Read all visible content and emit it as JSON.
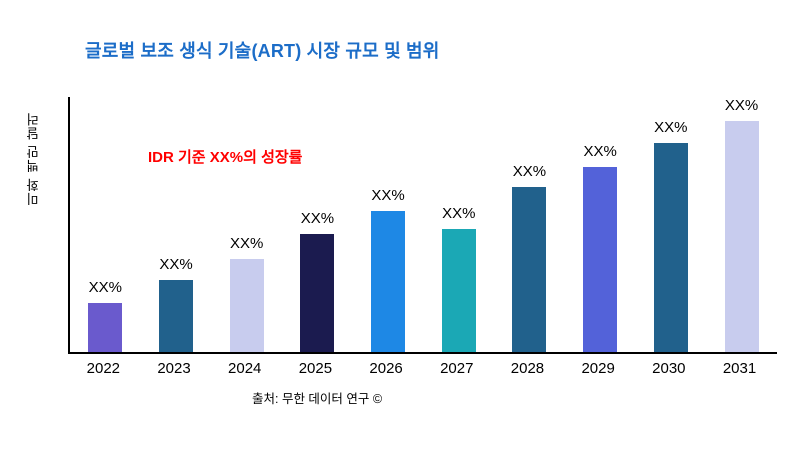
{
  "chart_data": {
    "type": "bar",
    "title": "글로벌 보조 생식 기술(ART) 시장 규모 및 범위",
    "annotation": "IDR 기준 XX%의 성장률",
    "ylabel": "미화 백만 달러",
    "source": "출처: 무한 데이터 연구 ©",
    "categories": [
      "2022",
      "2023",
      "2024",
      "2025",
      "2026",
      "2027",
      "2028",
      "2029",
      "2030",
      "2031"
    ],
    "values": [
      21,
      31,
      40,
      51,
      61,
      53,
      71,
      80,
      90,
      100
    ],
    "bar_label": "XX%",
    "bar_colors": [
      "#6A5ACD",
      "#21618C",
      "#C8CCEE",
      "#1B1B4F",
      "#1E88E5",
      "#1BA8B5",
      "#21618C",
      "#5362D9",
      "#21618C",
      "#C8CCEE"
    ],
    "ylim": [
      0,
      110
    ],
    "grid": false,
    "legend": false,
    "title_color": "#1C6DC8",
    "annotation_color": "#FF0000",
    "axis_color": "#000000"
  }
}
